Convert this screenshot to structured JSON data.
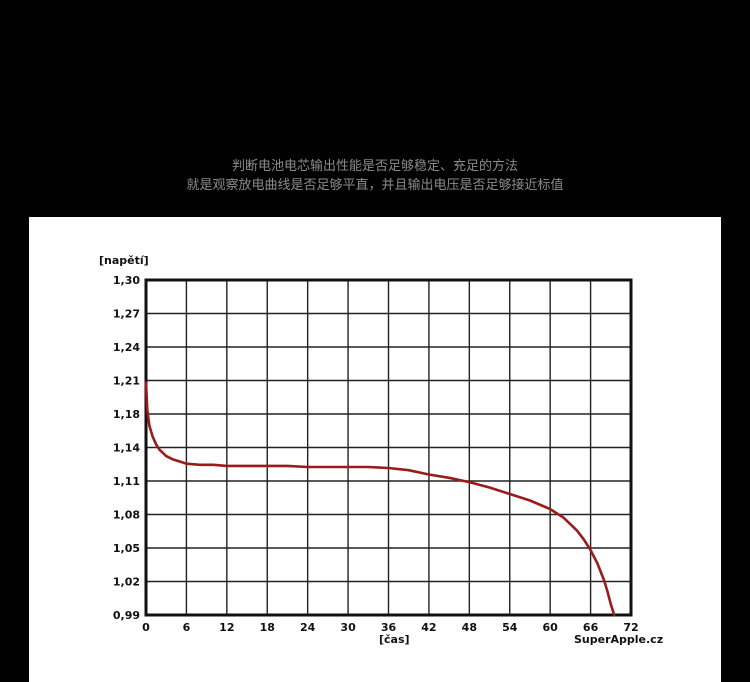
{
  "header": {
    "caption_line1": "判断电池电芯输出性能是否足够稳定、充足的方法",
    "caption_line2": "就是观察放电曲线是否足够平直，并且输出电压是否足够接近标值"
  },
  "chart_data": {
    "type": "line",
    "ylabel": "[napětí]",
    "xlabel": "[čas]",
    "watermark": "SuperApple.cz",
    "xlim": [
      0,
      72
    ],
    "ylim": [
      0.99,
      1.3
    ],
    "x_ticks": [
      0,
      6,
      12,
      18,
      24,
      30,
      36,
      42,
      48,
      54,
      60,
      66,
      72
    ],
    "y_ticks": [
      "0,99",
      "1,02",
      "1,05",
      "1,08",
      "1,11",
      "1,14",
      "1,18",
      "1,21",
      "1,24",
      "1,27",
      "1,30"
    ],
    "grid": true,
    "line_color": "#9b1b1b",
    "series": [
      {
        "x": [
          0,
          0.2,
          0.5,
          1,
          1.5,
          2,
          3,
          4,
          5,
          6,
          8,
          10,
          12,
          15,
          18,
          21,
          24,
          27,
          30,
          33,
          36,
          39,
          42,
          45,
          48,
          51,
          54,
          57,
          60,
          62,
          64,
          65,
          66,
          67,
          68,
          68.5,
          69,
          69.5
        ],
        "y": [
          1.205,
          1.18,
          1.165,
          1.155,
          1.148,
          1.143,
          1.137,
          1.134,
          1.132,
          1.13,
          1.129,
          1.129,
          1.128,
          1.128,
          1.128,
          1.128,
          1.127,
          1.127,
          1.127,
          1.127,
          1.126,
          1.124,
          1.12,
          1.117,
          1.113,
          1.108,
          1.102,
          1.096,
          1.088,
          1.08,
          1.068,
          1.06,
          1.05,
          1.038,
          1.022,
          1.012,
          1.0,
          0.99
        ]
      }
    ]
  }
}
